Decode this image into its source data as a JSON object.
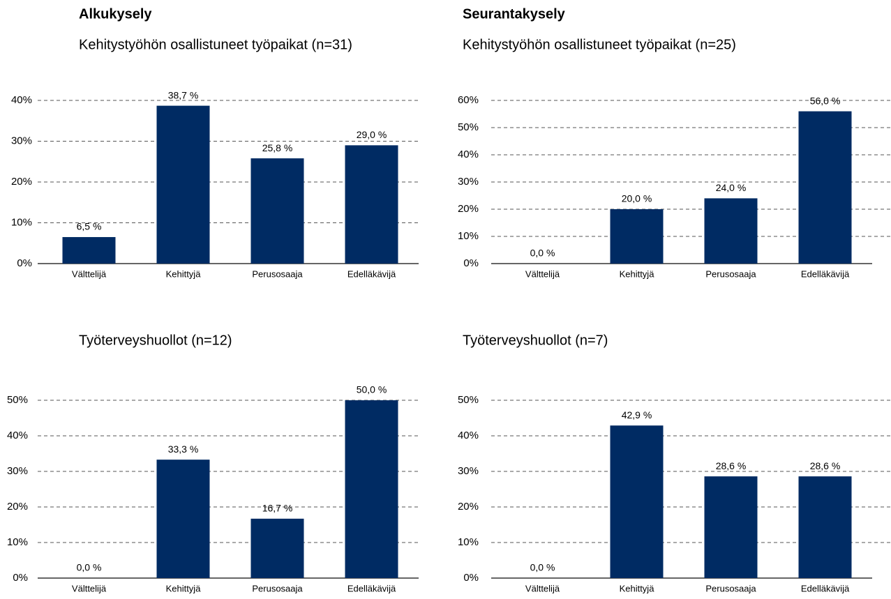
{
  "chart_data": [
    {
      "type": "bar",
      "title": "Alkukysely",
      "subtitle": "Kehitystyöhön osallistuneet työpaikat (n=31)",
      "categories": [
        "Välttelijä",
        "Kehittyjä",
        "Perusosaaja",
        "Edelläkävijä"
      ],
      "values": [
        6.5,
        38.7,
        25.8,
        29.0
      ],
      "value_labels": [
        "6,5 %",
        "38,7 %",
        "25,8 %",
        "29,0 %"
      ],
      "color": "#002b63",
      "ylim": [
        0,
        40
      ],
      "yticks": [
        {
          "value": 0,
          "label": "0%"
        },
        {
          "value": 10,
          "label": "10%"
        },
        {
          "value": 20,
          "label": "20%"
        },
        {
          "value": 30,
          "label": "30%"
        },
        {
          "value": 40,
          "label": "40%"
        }
      ],
      "grid": true
    },
    {
      "type": "bar",
      "title": "Seurantakysely",
      "subtitle": "Kehitystyöhön osallistuneet työpaikat (n=25)",
      "categories": [
        "Välttelijä",
        "Kehittyjä",
        "Perusosaaja",
        "Edelläkävijä"
      ],
      "values": [
        0.0,
        20.0,
        24.0,
        56.0
      ],
      "value_labels": [
        "0,0 %",
        "20,0 %",
        "24,0 %",
        "56,0 %"
      ],
      "color": "#002b63",
      "ylim": [
        0,
        60
      ],
      "yticks": [
        {
          "value": 0,
          "label": "0%"
        },
        {
          "value": 10,
          "label": "10%"
        },
        {
          "value": 20,
          "label": "20%"
        },
        {
          "value": 30,
          "label": "30%"
        },
        {
          "value": 40,
          "label": "40%"
        },
        {
          "value": 50,
          "label": "50%"
        },
        {
          "value": 60,
          "label": "60%"
        }
      ],
      "grid": true
    },
    {
      "type": "bar",
      "subtitle": "Työterveyshuollot (n=12)",
      "categories": [
        "Välttelijä",
        "Kehittyjä",
        "Perusosaaja",
        "Edelläkävijä"
      ],
      "values": [
        0.0,
        33.3,
        16.7,
        50.0
      ],
      "value_labels": [
        "0,0 %",
        "33,3 %",
        "16,7 %",
        "50,0 %"
      ],
      "color": "#002b63",
      "ylim": [
        0,
        50
      ],
      "yticks": [
        {
          "value": 0,
          "label": "0%"
        },
        {
          "value": 10,
          "label": "10%"
        },
        {
          "value": 20,
          "label": "20%"
        },
        {
          "value": 30,
          "label": "30%"
        },
        {
          "value": 40,
          "label": "40%"
        },
        {
          "value": 50,
          "label": "50%"
        }
      ],
      "grid": true
    },
    {
      "type": "bar",
      "subtitle": "Työterveyshuollot (n=7)",
      "categories": [
        "Välttelijä",
        "Kehittyjä",
        "Perusosaaja",
        "Edelläkävijä"
      ],
      "values": [
        0.0,
        42.9,
        28.6,
        28.6
      ],
      "value_labels": [
        "0,0 %",
        "42,9 %",
        "28,6 %",
        "28,6 %"
      ],
      "color": "#002b63",
      "ylim": [
        0,
        50
      ],
      "yticks": [
        {
          "value": 0,
          "label": "0%"
        },
        {
          "value": 10,
          "label": "10%"
        },
        {
          "value": 20,
          "label": "20%"
        },
        {
          "value": 30,
          "label": "30%"
        },
        {
          "value": 40,
          "label": "40%"
        },
        {
          "value": 50,
          "label": "50%"
        }
      ],
      "grid": true
    }
  ]
}
